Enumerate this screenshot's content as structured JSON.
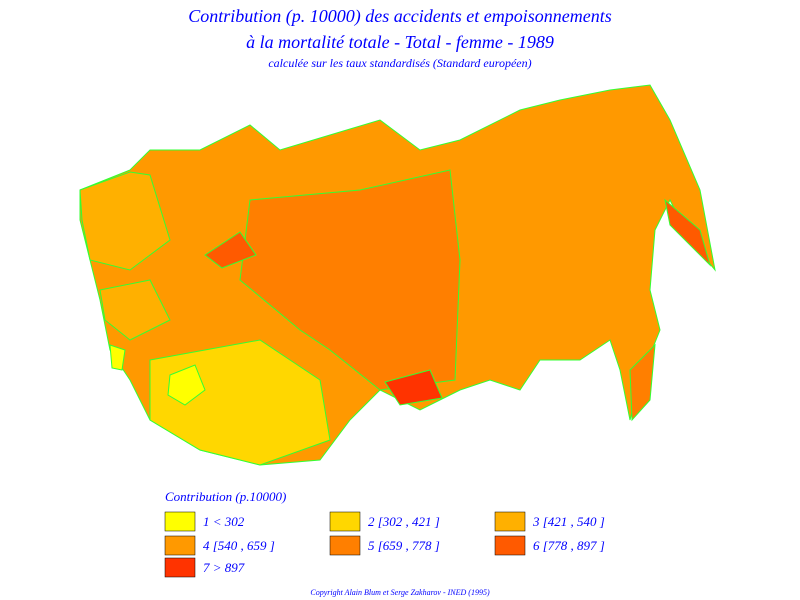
{
  "header": {
    "title_line1": "Contribution (p. 10000) des accidents et empoisonnements",
    "title_line2": "à la mortalité totale - Total - femme - 1989",
    "subtitle": "calculée sur les taux standardisés (Standard européen)"
  },
  "legend": {
    "title": "Contribution (p.10000)",
    "items": [
      {
        "label": "1 < 302",
        "color": "#ffff00"
      },
      {
        "label": "2 [302 , 421 ]",
        "color": "#ffd700"
      },
      {
        "label": "3 [421 , 540 ]",
        "color": "#ffb000"
      },
      {
        "label": "4 [540 , 659 ]",
        "color": "#ff9900"
      },
      {
        "label": "5 [659 , 778 ]",
        "color": "#ff7f00"
      },
      {
        "label": "6 [778 , 897 ]",
        "color": "#ff5a00"
      },
      {
        "label": "7 > 897",
        "color": "#ff3300"
      }
    ]
  },
  "footer": {
    "copyright": "Copyright Alain Blum et Serge Zakharov - INED (1995)"
  }
}
